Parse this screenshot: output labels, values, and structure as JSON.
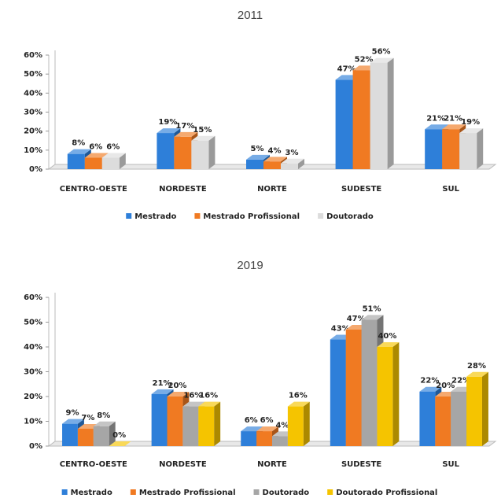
{
  "chart_data": [
    {
      "type": "bar3d",
      "title": "2011",
      "categories": [
        "CENTRO-OESTE",
        "NORDESTE",
        "NORTE",
        "SUDESTE",
        "SUL"
      ],
      "series": [
        {
          "name": "Mestrado",
          "color": "#2e7fd9",
          "values": [
            8,
            19,
            5,
            47,
            21
          ],
          "value_labels": [
            "8%",
            "19%",
            "5%",
            "47%",
            "21%"
          ]
        },
        {
          "name": "Mestrado Profissional",
          "color": "#f07a22",
          "values": [
            6,
            17,
            4,
            52,
            21
          ],
          "value_labels": [
            "6%",
            "17%",
            "4%",
            "52%",
            "21%"
          ]
        },
        {
          "name": "Doutorado",
          "color": "#dcdcdc",
          "values": [
            6,
            15,
            3,
            56,
            19
          ],
          "value_labels": [
            "6%",
            "15%",
            "3%",
            "56%",
            "19%"
          ]
        }
      ],
      "ylim": [
        0,
        60
      ],
      "yticks": [
        {
          "value": 0,
          "label": "0%"
        },
        {
          "value": 10,
          "label": "10%"
        },
        {
          "value": 20,
          "label": "20%"
        },
        {
          "value": 30,
          "label": "30%"
        },
        {
          "value": 40,
          "label": "40%"
        },
        {
          "value": 50,
          "label": "50%"
        },
        {
          "value": 60,
          "label": "60%"
        }
      ],
      "legend": "bottom"
    },
    {
      "type": "bar3d",
      "title": "2019",
      "categories": [
        "CENTRO-OESTE",
        "NORDESTE",
        "NORTE",
        "SUDESTE",
        "SUL"
      ],
      "series": [
        {
          "name": "Mestrado",
          "color": "#2e7fd9",
          "values": [
            9,
            21,
            6,
            43,
            22
          ],
          "value_labels": [
            "9%",
            "21%",
            "6%",
            "43%",
            "22%"
          ]
        },
        {
          "name": "Mestrado Profissional",
          "color": "#f07a22",
          "values": [
            7,
            20,
            6,
            47,
            20
          ],
          "value_labels": [
            "7%",
            "20%",
            "6%",
            "47%",
            "20%"
          ]
        },
        {
          "name": "Doutorado",
          "color": "#a6a6a6",
          "values": [
            8,
            16,
            4,
            51,
            22
          ],
          "value_labels": [
            "8%",
            "16%",
            "4%",
            "51%",
            "22%"
          ]
        },
        {
          "name": "Doutorado Profissional",
          "color": "#f5c400",
          "values": [
            0,
            16,
            16,
            40,
            28
          ],
          "value_labels": [
            "0%",
            "16%",
            "16%",
            "40%",
            "28%"
          ]
        }
      ],
      "ylim": [
        0,
        60
      ],
      "yticks": [
        {
          "value": 0,
          "label": "0%"
        },
        {
          "value": 10,
          "label": "10%"
        },
        {
          "value": 20,
          "label": "20%"
        },
        {
          "value": 30,
          "label": "30%"
        },
        {
          "value": 40,
          "label": "40%"
        },
        {
          "value": 50,
          "label": "50%"
        },
        {
          "value": 60,
          "label": "60%"
        }
      ],
      "legend": "bottom"
    }
  ]
}
